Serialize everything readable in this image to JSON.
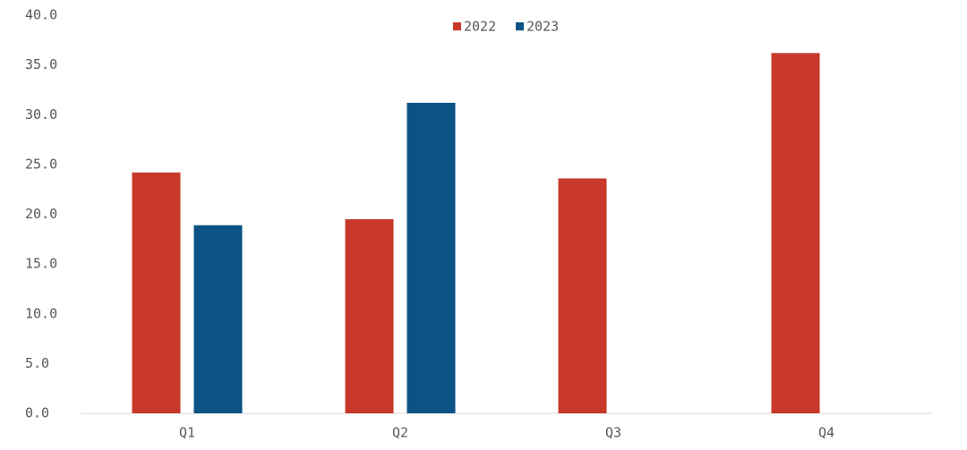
{
  "chart_data": {
    "type": "bar",
    "categories": [
      "Q1",
      "Q2",
      "Q3",
      "Q4"
    ],
    "series": [
      {
        "name": "2022",
        "color": "#c8392b",
        "values": [
          24.2,
          19.5,
          23.6,
          36.2
        ]
      },
      {
        "name": "2023",
        "color": "#0b5384",
        "values": [
          18.9,
          31.2,
          null,
          null
        ]
      }
    ],
    "ylim": [
      0,
      40
    ],
    "yticks": [
      {
        "value": 0,
        "label": "0.0"
      },
      {
        "value": 5,
        "label": "5.0"
      },
      {
        "value": 10,
        "label": "10.0"
      },
      {
        "value": 15,
        "label": "15.0"
      },
      {
        "value": 20,
        "label": "20.0"
      },
      {
        "value": 25,
        "label": "25.0"
      },
      {
        "value": 30,
        "label": "30.0"
      },
      {
        "value": 35,
        "label": "35.0"
      },
      {
        "value": 40,
        "label": "40.0"
      }
    ],
    "legend": "top"
  }
}
